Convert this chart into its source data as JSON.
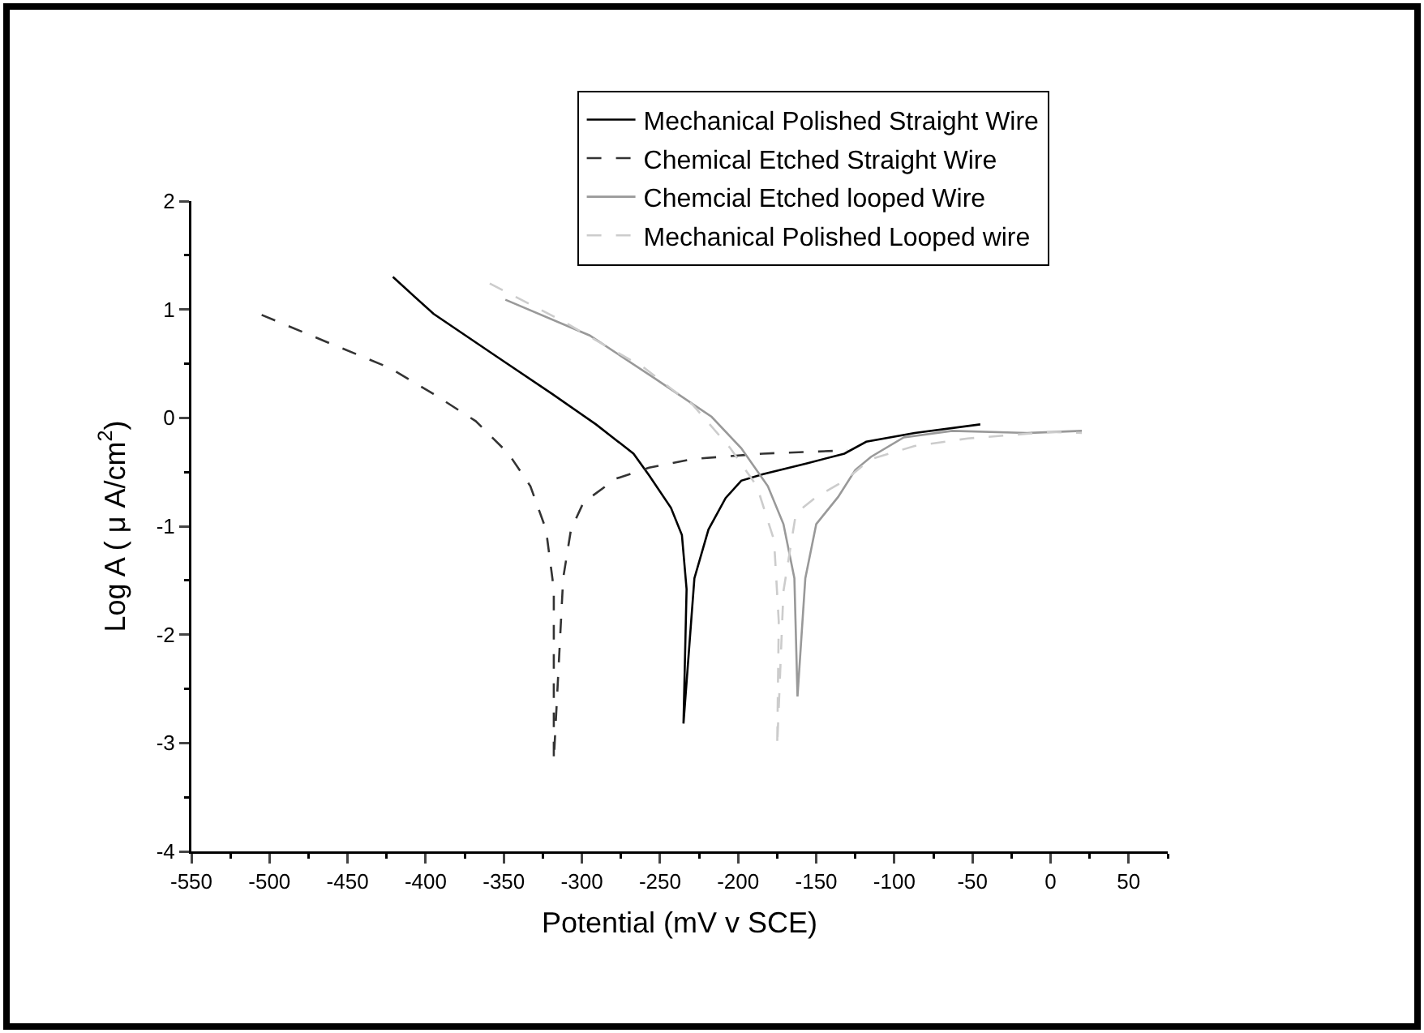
{
  "chart_data": {
    "type": "line",
    "xlabel": "Potential (mV v SCE)",
    "ylabel": "Log A ( μ A/cm$^{2}$)",
    "xlim": [
      -550,
      75
    ],
    "xticks": [
      -550,
      -500,
      -450,
      -400,
      -350,
      -300,
      -250,
      -200,
      -150,
      -100,
      -50,
      0,
      50
    ],
    "ylim": [
      -4,
      2
    ],
    "yticks": [
      -4,
      -3,
      -2,
      -1,
      0,
      1,
      2
    ],
    "grid": false,
    "legend": "top right",
    "marker": "none",
    "series": [
      {
        "name": "Mechanical Polished Straight Wire",
        "color": "#000000",
        "line_style": "solid",
        "x": [
          -421,
          -395,
          -354,
          -319,
          -291,
          -267,
          -257,
          -243,
          -236,
          -233,
          -235,
          -228,
          -219,
          -208,
          -198,
          -184,
          -156,
          -132,
          -118,
          -87,
          -45
        ],
        "values": [
          1.3,
          0.96,
          0.56,
          0.22,
          -0.06,
          -0.33,
          -0.53,
          -0.83,
          -1.08,
          -1.58,
          -2.82,
          -1.48,
          -1.03,
          -0.74,
          -0.58,
          -0.52,
          -0.42,
          -0.33,
          -0.22,
          -0.14,
          -0.06
        ]
      },
      {
        "name": "Chemical Etched Straight Wire",
        "color": "#333333",
        "line_style": "dashed",
        "x": [
          -505,
          -465,
          -423,
          -395,
          -368,
          -347,
          -333,
          -323,
          -318,
          -318,
          -312,
          -307,
          -299,
          -278,
          -257,
          -229,
          -184,
          -130
        ],
        "values": [
          0.95,
          0.71,
          0.46,
          0.22,
          -0.03,
          -0.33,
          -0.63,
          -1.03,
          -1.58,
          -3.16,
          -1.48,
          -1.03,
          -0.78,
          -0.56,
          -0.46,
          -0.38,
          -0.33,
          -0.3
        ]
      },
      {
        "name": "Chemcial Etched looped Wire",
        "color": "#999999",
        "line_style": "solid",
        "x": [
          -349,
          -295,
          -254,
          -217,
          -198,
          -181,
          -171,
          -164,
          -162,
          -157,
          -150,
          -136,
          -125,
          -115,
          -94,
          -63,
          -15,
          20
        ],
        "values": [
          1.09,
          0.76,
          0.37,
          0.01,
          -0.28,
          -0.63,
          -0.98,
          -1.48,
          -2.57,
          -1.48,
          -0.98,
          -0.73,
          -0.48,
          -0.36,
          -0.18,
          -0.12,
          -0.14,
          -0.12
        ]
      },
      {
        "name": "Mechanical Polished Looped wire",
        "color": "#cccccc",
        "line_style": "dashed",
        "x": [
          -359,
          -312,
          -260,
          -243,
          -229,
          -205,
          -188,
          -177,
          -174,
          -175,
          -171,
          -163,
          -150,
          -132,
          -115,
          -87,
          -53,
          0,
          20
        ],
        "values": [
          1.24,
          0.89,
          0.46,
          0.27,
          0.12,
          -0.28,
          -0.63,
          -1.13,
          -1.88,
          -3.03,
          -1.6,
          -0.88,
          -0.73,
          -0.58,
          -0.38,
          -0.26,
          -0.19,
          -0.13,
          -0.14
        ]
      }
    ]
  }
}
